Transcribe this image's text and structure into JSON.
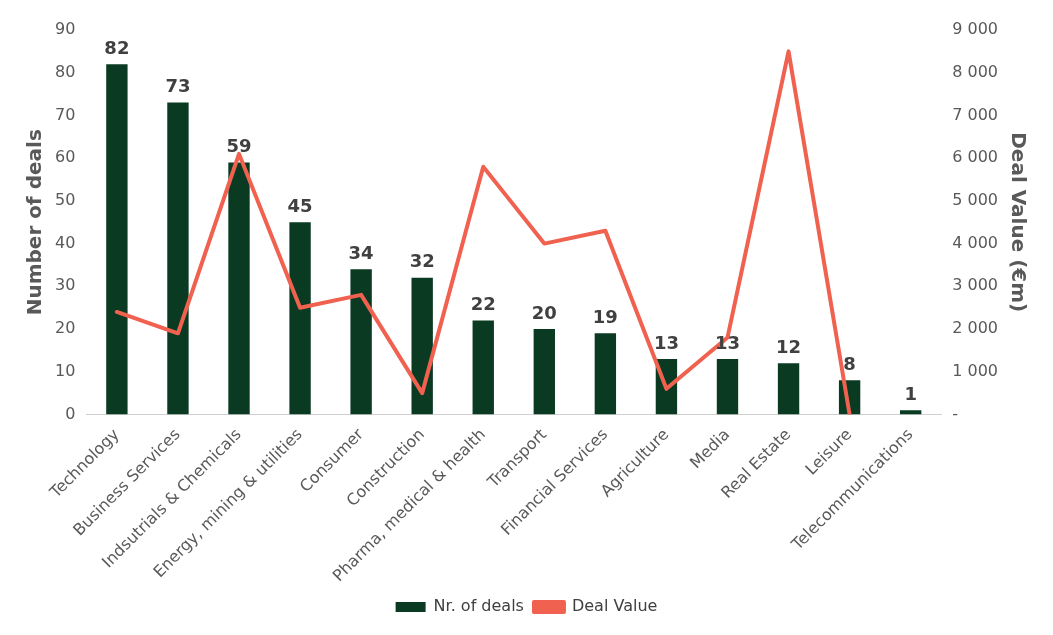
{
  "chart_data": {
    "type": "bar",
    "ylabel": "Number of deals",
    "y2label": "Deal Value (€m)",
    "categories": [
      "Technology",
      "Business Services",
      "Indsutrials & Chemicals",
      "Energy, mining & utilities",
      "Consumer",
      "Construction",
      "Pharma, medical & health",
      "Transport",
      "Financial Services",
      "Agriculture",
      "Media",
      "Real Estate",
      "Leisure",
      "Telecommunications"
    ],
    "series": [
      {
        "name": "Nr. of deals",
        "color": "#0a3a22",
        "values": [
          82,
          73,
          59,
          45,
          34,
          32,
          22,
          20,
          19,
          13,
          13,
          12,
          8,
          1
        ],
        "value_labels": [
          "82",
          "73",
          "59",
          "45",
          "34",
          "32",
          "22",
          "20",
          "19",
          "13",
          "13",
          "12",
          "8",
          "1"
        ]
      },
      {
        "name": "Deal Value",
        "type": "line",
        "axis": "y2",
        "color": "#f0614f",
        "marker": "none",
        "values": [
          2400,
          1900,
          6100,
          2500,
          2800,
          500,
          5800,
          4000,
          4300,
          600,
          1800,
          8500,
          0,
          null
        ]
      }
    ],
    "ylim": [
      0,
      90
    ],
    "yticks": [
      0,
      10,
      20,
      30,
      40,
      50,
      60,
      70,
      80,
      90
    ],
    "y2lim": [
      0,
      9000
    ],
    "y2ticks": [
      {
        "value": 0,
        "label": "-"
      },
      {
        "value": 1000,
        "label": "1 000"
      },
      {
        "value": 2000,
        "label": "2 000"
      },
      {
        "value": 3000,
        "label": "3 000"
      },
      {
        "value": 4000,
        "label": "4 000"
      },
      {
        "value": 5000,
        "label": "5 000"
      },
      {
        "value": 6000,
        "label": "6 000"
      },
      {
        "value": 7000,
        "label": "7 000"
      },
      {
        "value": 8000,
        "label": "8 000"
      },
      {
        "value": 9000,
        "label": "9 000"
      }
    ],
    "grid": false,
    "legend": "bottom"
  }
}
